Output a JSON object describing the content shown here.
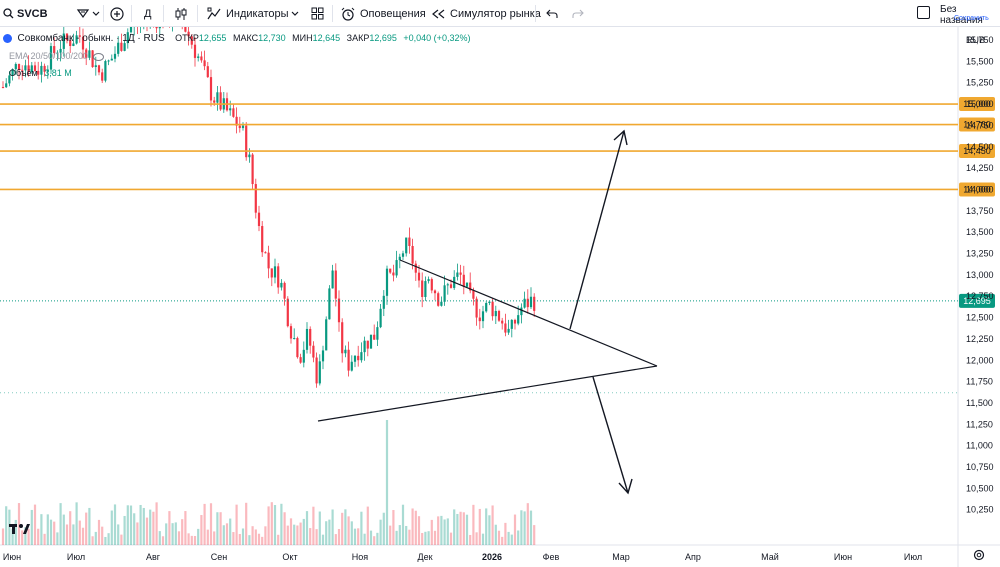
{
  "toolbar": {
    "symbol": "SVCB",
    "interval": "Д",
    "indicators_label": "Индикаторы",
    "alerts_label": "Оповещения",
    "replay_label": "Симулятор рынка",
    "layout_name": "Без названия",
    "save_label": "Сохранить"
  },
  "legend": {
    "title": "Совкомбанк - обыкн. · 1Д · RUS",
    "open_label": "ОТКР",
    "open": "12,655",
    "high_label": "МАКС",
    "high": "12,730",
    "low_label": "МИН",
    "low": "12,645",
    "close_label": "ЗАКР",
    "close": "12,695",
    "change": "+0,040 (+0,32%)",
    "ema": "EMA 20/50/100/200",
    "volume_label": "Объём",
    "volume": "3,81 М"
  },
  "currency": "RUB",
  "chart_data": {
    "type": "candlestick",
    "y_axis_ticks": [
      "15,750",
      "15,500",
      "15,250",
      "15,000",
      "14,750",
      "14,500",
      "14,250",
      "14,000",
      "13,750",
      "13,500",
      "13,250",
      "13,000",
      "12,750",
      "12,500",
      "12,250",
      "12,000",
      "11,750",
      "11,500",
      "11,250",
      "11,000",
      "10,750",
      "10,500",
      "10,250"
    ],
    "x_axis_ticks": [
      "Июн",
      "Июл",
      "Авг",
      "Сен",
      "Окт",
      "Ноя",
      "Дек",
      "2026",
      "Фев",
      "Мар",
      "Апр",
      "Май",
      "Июн",
      "Июл"
    ],
    "ylim": [
      10.15,
      16.15
    ],
    "horizontal_levels": [
      {
        "label": "15,000",
        "value": 15.0
      },
      {
        "label": "14,760",
        "value": 14.76
      },
      {
        "label": "14,450",
        "value": 14.45
      },
      {
        "label": "14,000",
        "value": 14.0
      }
    ],
    "last_price": {
      "label": "12,695",
      "value": 12.695
    },
    "colors": {
      "up": "#089981",
      "down": "#f23645",
      "level": "#f0a830",
      "last": "#089981"
    },
    "price_path": [
      [
        "Июн",
        15.3
      ],
      [
        "Июл",
        15.6
      ],
      [
        "Авг",
        15.9
      ],
      [
        "Сен",
        15.1
      ],
      [
        "Окт",
        12.3
      ],
      [
        "Ноя",
        12.2
      ],
      [
        "Дек",
        13.0
      ],
      [
        "2026",
        12.3
      ],
      [
        "2026",
        12.695
      ]
    ]
  },
  "drawings": {
    "triangle": "symmetrical triangle",
    "arrows": [
      "breakout up to 15,000",
      "breakdown down"
    ]
  },
  "icons": [
    "search-icon",
    "chevron-down-icon",
    "plus-circle-icon",
    "candles-icon",
    "indicators-icon",
    "layout-grid-icon",
    "alarm-clock-icon",
    "replay-icon",
    "undo-icon",
    "redo-icon",
    "tradingview-logo",
    "settings-icon"
  ]
}
